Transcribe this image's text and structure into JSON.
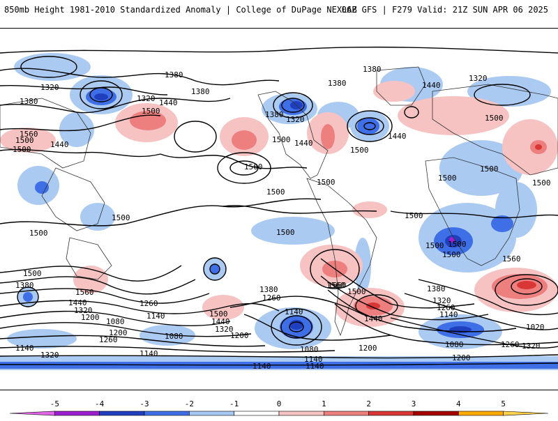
{
  "header": {
    "title_left": "850mb Height 1981-2010 Standardized Anomaly | College of DuPage NEXLAB",
    "title_right": "06Z GFS | F279 Valid: 21Z SUN APR 06 2025"
  },
  "colorbar": {
    "ticks": [
      "-5",
      "-4",
      "-3",
      "-2",
      "-1",
      "0",
      "1",
      "2",
      "3",
      "4",
      "5"
    ],
    "colors": [
      "#e066e6",
      "#9b1fd1",
      "#1f3fbf",
      "#3f6fe6",
      "#a6c8f2",
      "#ffffff",
      "#f7c2c2",
      "#ee7f7f",
      "#d93636",
      "#a50000",
      "#ffaa00",
      "#ffd24d"
    ]
  },
  "contour_labels": [
    {
      "text": "1380",
      "id": "c1"
    },
    {
      "text": "1320",
      "id": "c2"
    },
    {
      "text": "1380",
      "id": "c3"
    },
    {
      "text": "1380",
      "id": "c4"
    },
    {
      "text": "1320",
      "id": "c5"
    },
    {
      "text": "1440",
      "id": "c6"
    },
    {
      "text": "1500",
      "id": "c7"
    },
    {
      "text": "1560",
      "id": "c8"
    },
    {
      "text": "1500",
      "id": "c9"
    },
    {
      "text": "1500",
      "id": "c10"
    },
    {
      "text": "1440",
      "id": "c11"
    },
    {
      "text": "1560",
      "id": "c12"
    },
    {
      "text": "1500",
      "id": "c13"
    },
    {
      "text": "1500",
      "id": "c14"
    },
    {
      "text": "1500",
      "id": "c15"
    },
    {
      "text": "1380",
      "id": "c16"
    },
    {
      "text": "1380",
      "id": "c17"
    },
    {
      "text": "1320",
      "id": "c18"
    },
    {
      "text": "1440",
      "id": "c19"
    },
    {
      "text": "1500",
      "id": "c20"
    },
    {
      "text": "1440",
      "id": "c21"
    },
    {
      "text": "1380",
      "id": "c22"
    },
    {
      "text": "1320",
      "id": "c23"
    },
    {
      "text": "1440",
      "id": "c24"
    },
    {
      "text": "1500",
      "id": "c25"
    },
    {
      "text": "1500",
      "id": "c26"
    },
    {
      "text": "1500",
      "id": "c27"
    },
    {
      "text": "1500",
      "id": "c28"
    },
    {
      "text": "1500",
      "id": "c29"
    },
    {
      "text": "1500",
      "id": "c30"
    },
    {
      "text": "1500",
      "id": "c31"
    },
    {
      "text": "1560",
      "id": "c32"
    },
    {
      "text": "1500",
      "id": "c33"
    },
    {
      "text": "1380",
      "id": "c34"
    },
    {
      "text": "1560",
      "id": "c35"
    },
    {
      "text": "1440",
      "id": "c36"
    },
    {
      "text": "1320",
      "id": "c37"
    },
    {
      "text": "1200",
      "id": "c38"
    },
    {
      "text": "1260",
      "id": "c39"
    },
    {
      "text": "1140",
      "id": "c40"
    },
    {
      "text": "1080",
      "id": "c41"
    },
    {
      "text": "1260",
      "id": "c42"
    },
    {
      "text": "1200",
      "id": "c43"
    },
    {
      "text": "1140",
      "id": "c44"
    },
    {
      "text": "1320",
      "id": "c45"
    },
    {
      "text": "1500",
      "id": "c46"
    },
    {
      "text": "1440",
      "id": "c47"
    },
    {
      "text": "1320",
      "id": "c48"
    },
    {
      "text": "1200",
      "id": "c49"
    },
    {
      "text": "1080",
      "id": "c50"
    },
    {
      "text": "1140",
      "id": "c51"
    },
    {
      "text": "1380",
      "id": "c52"
    },
    {
      "text": "1260",
      "id": "c53"
    },
    {
      "text": "1140",
      "id": "c54"
    },
    {
      "text": "1080",
      "id": "c55"
    },
    {
      "text": "1140",
      "id": "c56"
    },
    {
      "text": "1560",
      "id": "c57"
    },
    {
      "text": "1500",
      "id": "c58"
    },
    {
      "text": "1440",
      "id": "c59"
    },
    {
      "text": "1200",
      "id": "c60"
    },
    {
      "text": "1380",
      "id": "c61"
    },
    {
      "text": "1320",
      "id": "c62"
    },
    {
      "text": "1260",
      "id": "c63"
    },
    {
      "text": "1140",
      "id": "c64"
    },
    {
      "text": "1200",
      "id": "c65"
    },
    {
      "text": "1080",
      "id": "c66"
    },
    {
      "text": "1260",
      "id": "c67"
    },
    {
      "text": "1320",
      "id": "c68"
    },
    {
      "text": "1020",
      "id": "c69"
    },
    {
      "text": "1560",
      "id": "c70"
    },
    {
      "text": "1500",
      "id": "c71"
    },
    {
      "text": "1500",
      "id": "c72"
    },
    {
      "text": "1140",
      "id": "c73"
    },
    {
      "text": "1140",
      "id": "c74"
    },
    {
      "text": "1500",
      "id": "c75"
    },
    {
      "text": "1500",
      "id": "c76"
    }
  ]
}
